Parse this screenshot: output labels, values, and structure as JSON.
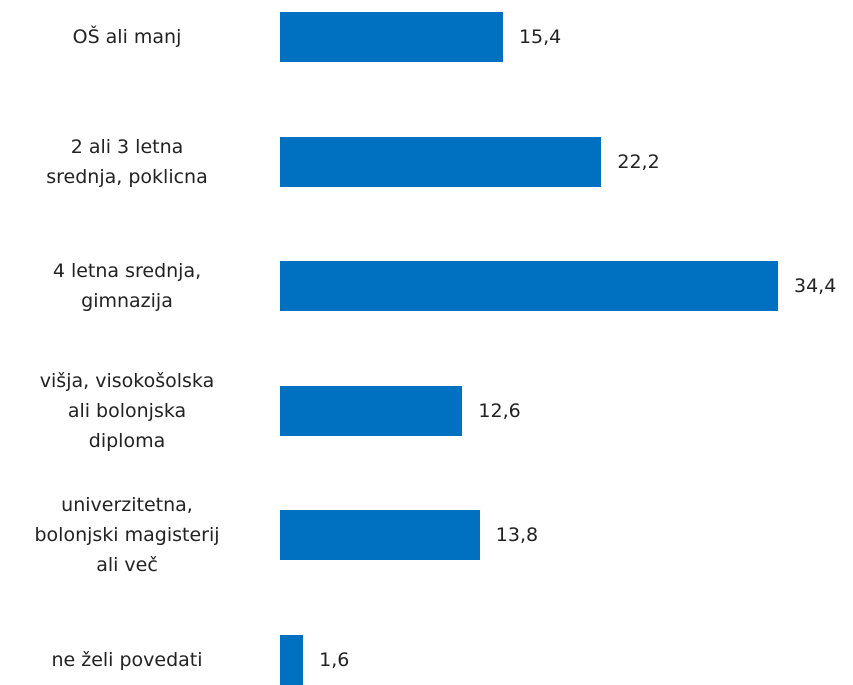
{
  "chart_data": {
    "type": "bar",
    "orientation": "horizontal",
    "categories": [
      "OŠ ali manj",
      "2 ali 3 letna\nsrednja, poklicna",
      "4 letna srednja,\ngimnazija",
      "višja, visokošolska\nali bolonjska\ndiploma",
      "univerzitetna,\nbolonjski magisterij\nali več",
      "ne želi povedati"
    ],
    "values": [
      15.4,
      22.2,
      34.4,
      12.6,
      13.8,
      1.6
    ],
    "value_labels": [
      "15,4",
      "22,2",
      "34,4",
      "12,6",
      "13,8",
      "1,6"
    ],
    "color": "#0070c0"
  }
}
